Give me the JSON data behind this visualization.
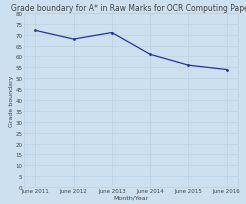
{
  "title": "Grade boundary for A* in Raw Marks for OCR Computing Paper",
  "xlabel": "Month/Year",
  "ylabel": "Grade boundary",
  "x_labels": [
    "June 2011",
    "June 2012",
    "June 2013",
    "June 2014",
    "June 2015",
    "June 2016"
  ],
  "x_values": [
    0,
    1,
    2,
    3,
    4,
    5
  ],
  "y_values": [
    72,
    68,
    71,
    61,
    56,
    54
  ],
  "ylim": [
    0,
    80
  ],
  "yticks": [
    0,
    5,
    10,
    15,
    20,
    25,
    30,
    35,
    40,
    45,
    50,
    55,
    60,
    65,
    70,
    75,
    80
  ],
  "line_color": "#2233aa",
  "bg_color": "#cce0f0",
  "grid_color": "#b8cfe0",
  "title_fontsize": 5.5,
  "label_fontsize": 4.5,
  "tick_fontsize": 4.0,
  "ylabel_fontsize": 4.5
}
